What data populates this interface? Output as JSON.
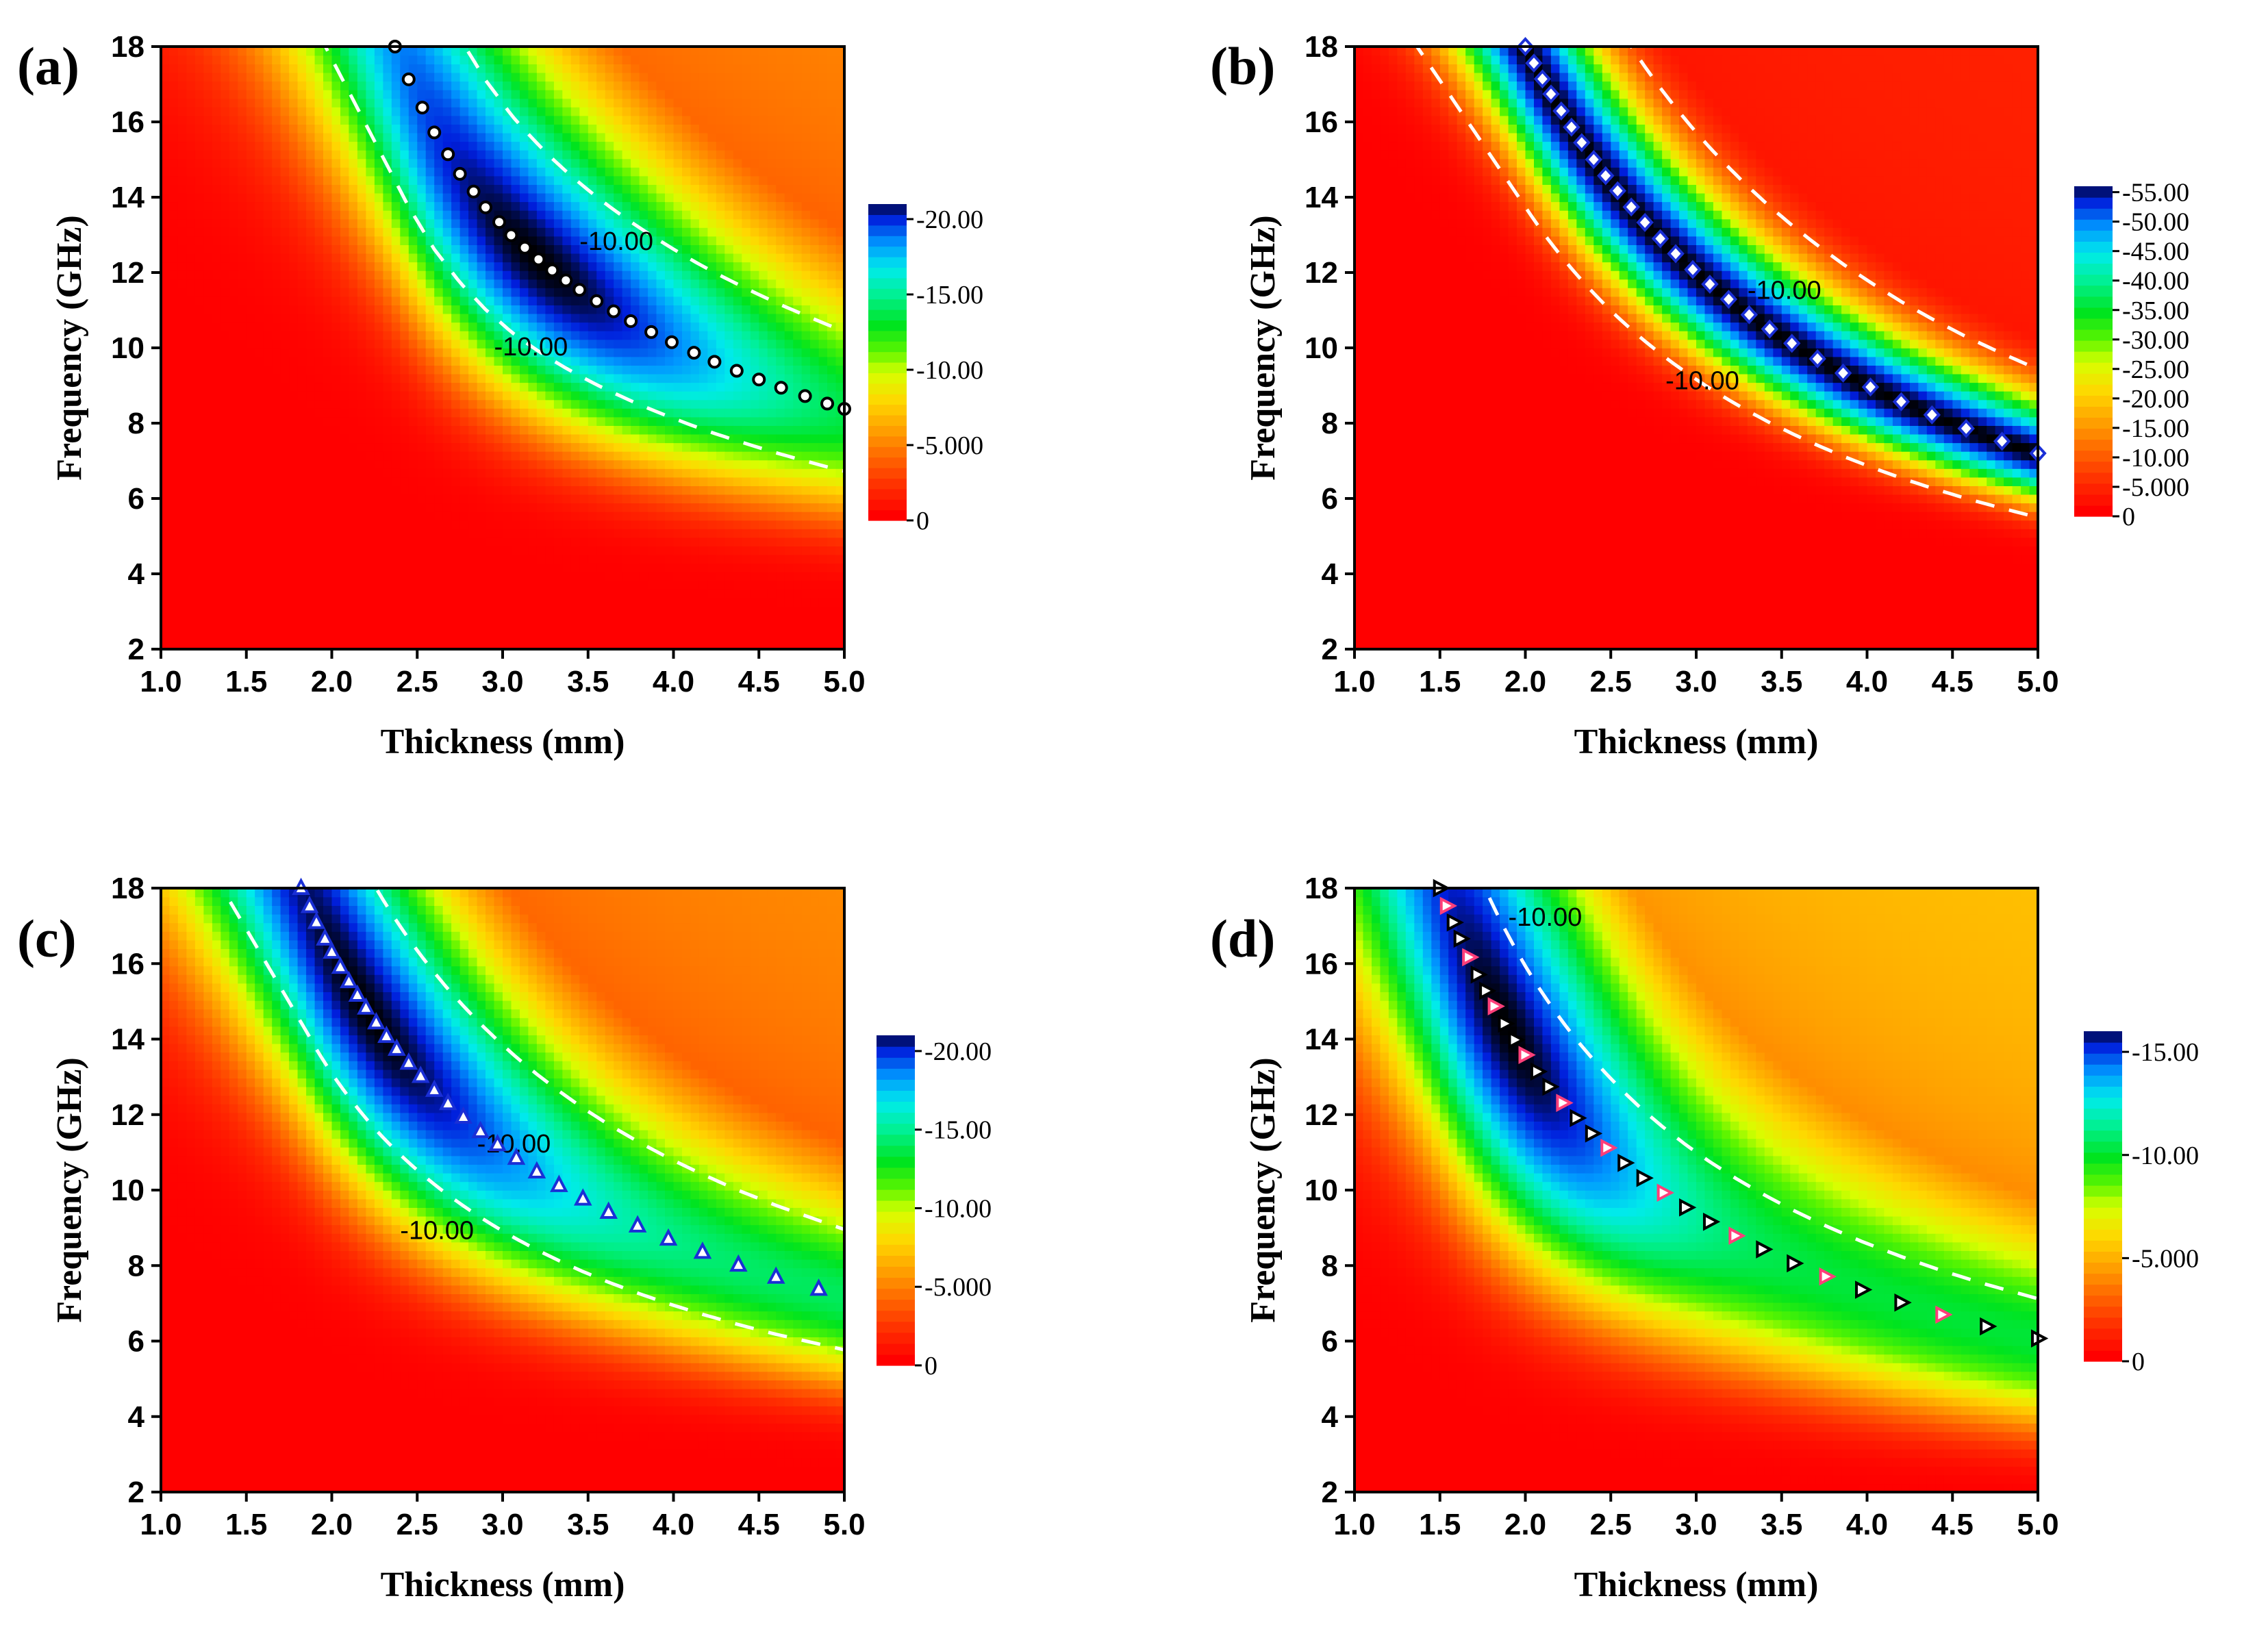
{
  "figure": {
    "description_free": true
  },
  "chart_data": [
    {
      "type": "heatmap",
      "panel": "(a)",
      "xlabel": "Thickness (mm)",
      "ylabel": "Frequency (GHz)",
      "xlim": [
        1.0,
        5.0
      ],
      "ylim": [
        2,
        18
      ],
      "xticks": [
        "1.0",
        "1.5",
        "2.0",
        "2.5",
        "3.0",
        "3.5",
        "4.0",
        "4.5",
        "5.0"
      ],
      "yticks": [
        "2",
        "4",
        "6",
        "8",
        "10",
        "12",
        "14",
        "16",
        "18"
      ],
      "colorbar": {
        "ticks": [
          "-20.00",
          "-15.00",
          "-10.00",
          "-5.000",
          "0"
        ],
        "min": -21,
        "max": 0
      },
      "min_rl": -21,
      "contour_labels": [
        "-10.00",
        "-10.00"
      ],
      "match_curve": {
        "marker": "circle",
        "marker_fill": "#ffffff",
        "marker_edge": "#000000",
        "thickness": [
          2.37,
          2.45,
          2.53,
          2.6,
          2.68,
          2.75,
          2.83,
          2.9,
          2.98,
          3.05,
          3.13,
          3.21,
          3.29,
          3.37,
          3.45,
          3.55,
          3.65,
          3.75,
          3.87,
          3.99,
          4.12,
          4.24,
          4.37,
          4.5,
          4.63,
          4.77,
          4.9,
          5.0
        ],
        "frequency": [
          18.0,
          17.13,
          16.38,
          15.72,
          15.14,
          14.62,
          14.15,
          13.73,
          13.34,
          12.99,
          12.66,
          12.35,
          12.06,
          11.79,
          11.54,
          11.24,
          10.97,
          10.71,
          10.42,
          10.15,
          9.87,
          9.63,
          9.39,
          9.16,
          8.94,
          8.72,
          8.52,
          8.38
        ]
      }
    },
    {
      "type": "heatmap",
      "panel": "(b)",
      "xlabel": "Thickness (mm)",
      "ylabel": "Frequency (GHz)",
      "xlim": [
        1.0,
        5.0
      ],
      "ylim": [
        2,
        18
      ],
      "xticks": [
        "1.0",
        "1.5",
        "2.0",
        "2.5",
        "3.0",
        "3.5",
        "4.0",
        "4.5",
        "5.0"
      ],
      "yticks": [
        "2",
        "4",
        "6",
        "8",
        "10",
        "12",
        "14",
        "16",
        "18"
      ],
      "colorbar": {
        "ticks": [
          "-55.00",
          "-50.00",
          "-45.00",
          "-40.00",
          "-35.00",
          "-30.00",
          "-25.00",
          "-20.00",
          "-15.00",
          "-10.00",
          "-5.000",
          "0"
        ],
        "min": -56,
        "max": 0
      },
      "min_rl": -56,
      "contour_labels": [
        "-10.00",
        "-10.00"
      ],
      "match_curve": {
        "marker": "diamond",
        "marker_fill": "#ffffff",
        "marker_edge": "#1a2fd6",
        "thickness": [
          2.0,
          2.05,
          2.1,
          2.15,
          2.21,
          2.27,
          2.33,
          2.4,
          2.47,
          2.54,
          2.62,
          2.7,
          2.79,
          2.88,
          2.98,
          3.08,
          3.19,
          3.31,
          3.43,
          3.56,
          3.71,
          3.86,
          4.02,
          4.2,
          4.38,
          4.58,
          4.79,
          5.0
        ],
        "frequency": [
          18.0,
          17.56,
          17.14,
          16.74,
          16.29,
          15.86,
          15.45,
          15.0,
          14.57,
          14.17,
          13.74,
          13.33,
          12.9,
          12.5,
          12.08,
          11.69,
          11.29,
          10.88,
          10.5,
          10.12,
          9.71,
          9.33,
          8.96,
          8.57,
          8.22,
          7.86,
          7.52,
          7.2
        ]
      }
    },
    {
      "type": "heatmap",
      "panel": "(c)",
      "xlabel": "Thickness (mm)",
      "ylabel": "Frequency (GHz)",
      "xlim": [
        1.0,
        5.0
      ],
      "ylim": [
        2,
        18
      ],
      "xticks": [
        "1.0",
        "1.5",
        "2.0",
        "2.5",
        "3.0",
        "3.5",
        "4.0",
        "4.5",
        "5.0"
      ],
      "yticks": [
        "2",
        "4",
        "6",
        "8",
        "10",
        "12",
        "14",
        "16",
        "18"
      ],
      "colorbar": {
        "ticks": [
          "-20.00",
          "-15.00",
          "-10.00",
          "-5.000",
          "0"
        ],
        "min": -21,
        "max": 0
      },
      "min_rl": -21,
      "contour_labels": [
        "-10.00",
        "-10.00"
      ],
      "match_curve": {
        "marker": "triangle-up",
        "marker_fill": "#ffffff",
        "marker_edge": "#1a2fd6",
        "thickness": [
          1.82,
          1.87,
          1.91,
          1.96,
          2.0,
          2.05,
          2.1,
          2.15,
          2.2,
          2.26,
          2.32,
          2.38,
          2.45,
          2.52,
          2.6,
          2.68,
          2.77,
          2.87,
          2.97,
          3.08,
          3.2,
          3.33,
          3.47,
          3.62,
          3.79,
          3.97,
          4.17,
          4.38,
          4.6,
          4.85
        ],
        "frequency": [
          18.0,
          17.52,
          17.1,
          16.66,
          16.31,
          15.91,
          15.53,
          15.17,
          14.83,
          14.44,
          14.08,
          13.74,
          13.37,
          13.02,
          12.65,
          12.3,
          11.94,
          11.56,
          11.21,
          10.85,
          10.49,
          10.13,
          9.77,
          9.42,
          9.06,
          8.71,
          8.36,
          8.02,
          7.7,
          7.38
        ]
      }
    },
    {
      "type": "heatmap",
      "panel": "(d)",
      "xlabel": "Thickness (mm)",
      "ylabel": "Frequency (GHz)",
      "xlim": [
        1.0,
        5.0
      ],
      "ylim": [
        2,
        18
      ],
      "xticks": [
        "1.0",
        "1.5",
        "2.0",
        "2.5",
        "3.0",
        "3.5",
        "4.0",
        "4.5",
        "5.0"
      ],
      "yticks": [
        "2",
        "4",
        "6",
        "8",
        "10",
        "12",
        "14",
        "16",
        "18"
      ],
      "colorbar": {
        "ticks": [
          "-15.00",
          "-10.00",
          "-5.000",
          "0"
        ],
        "min": -16,
        "max": 0
      },
      "min_rl": -16,
      "contour_labels": [
        "-10.00"
      ],
      "match_curve": {
        "marker": "triangle-right",
        "marker_fill": "#ffffff",
        "marker_edge": "#000000",
        "thickness": [
          1.5,
          1.54,
          1.58,
          1.62,
          1.67,
          1.72,
          1.77,
          1.82,
          1.88,
          1.94,
          2.0,
          2.07,
          2.14,
          2.22,
          2.3,
          2.39,
          2.48,
          2.58,
          2.69,
          2.81,
          2.94,
          3.08,
          3.23,
          3.39,
          3.57,
          3.76,
          3.97,
          4.2,
          4.44,
          4.7,
          5.0
        ],
        "frequency": [
          18.0,
          17.53,
          17.09,
          16.66,
          16.17,
          15.71,
          15.28,
          14.87,
          14.41,
          13.98,
          13.58,
          13.14,
          12.74,
          12.31,
          11.91,
          11.5,
          11.12,
          10.72,
          10.32,
          9.93,
          9.54,
          9.16,
          8.79,
          8.43,
          8.06,
          7.71,
          7.36,
          7.02,
          6.7,
          6.39,
          6.07
        ]
      }
    }
  ]
}
